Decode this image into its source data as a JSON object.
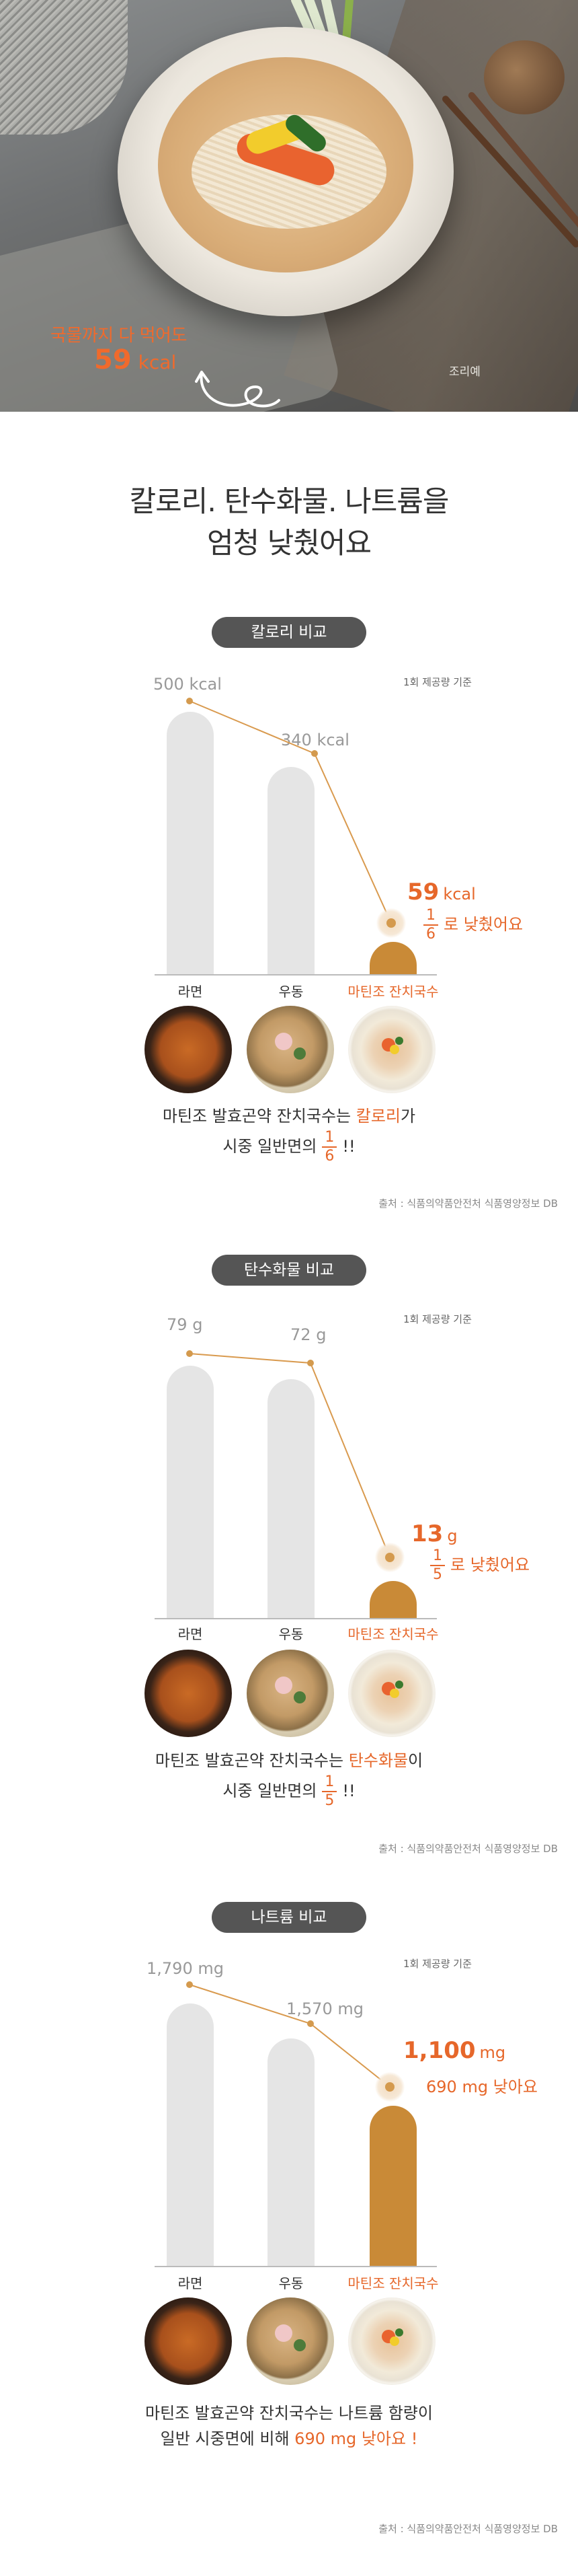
{
  "hero": {
    "caption_line1": "국물까지 다 먹어도",
    "cal_value": "59",
    "cal_unit": "kcal",
    "image_tag": "조리예"
  },
  "heading": {
    "line1": "칼로리. 탄수화물. 나트륨을",
    "line2": "엄청 낮췄어요"
  },
  "products": [
    "라면",
    "우동",
    "마틴조 잔치국수"
  ],
  "sections": [
    {
      "pill": "칼로리 비교",
      "basis": "1회 제공량 기준",
      "values": [
        {
          "num": "500",
          "unit": "kcal"
        },
        {
          "num": "340",
          "unit": "kcal"
        },
        {
          "num": "59",
          "unit": "kcal"
        }
      ],
      "reduction_num": "1",
      "reduction_den": "6",
      "reduction_text": "로 낮췄어요",
      "summary_pre": "마틴조 발효곤약 잔치국수는 ",
      "summary_key": "칼로리",
      "summary_post": "가",
      "summary_line2_pre": "시중 일반면의",
      "summary_line2_num": "1",
      "summary_line2_den": "6",
      "summary_line2_post": "!!",
      "source": "출처 : 식품의약품안전처 식품영양정보 DB"
    },
    {
      "pill": "탄수화물  비교",
      "basis": "1회 제공량 기준",
      "values": [
        {
          "num": "79",
          "unit": "g"
        },
        {
          "num": "72",
          "unit": "g"
        },
        {
          "num": "13",
          "unit": "g"
        }
      ],
      "reduction_num": "1",
      "reduction_den": "5",
      "reduction_text": "로 낮췄어요",
      "summary_pre": "마틴조 발효곤약 잔치국수는 ",
      "summary_key": "탄수화물",
      "summary_post": "이",
      "summary_line2_pre": "시중 일반면의",
      "summary_line2_num": "1",
      "summary_line2_den": "5",
      "summary_line2_post": "!!",
      "source": "출처 : 식품의약품안전처 식품영양정보 DB"
    },
    {
      "pill": "나트륨  비교",
      "basis": "1회 제공량 기준",
      "values": [
        {
          "num": "1,790",
          "unit": "mg"
        },
        {
          "num": "1,570",
          "unit": "mg"
        },
        {
          "num": "1,100",
          "unit": "mg"
        }
      ],
      "reduction_text": "690 mg 낮아요",
      "summary_line1": "마틴조 발효곤약 잔치국수는 나트륨 함량이",
      "summary_line2_pre": "일반 시중면에 비해 ",
      "summary_line2_key": "690 mg 낮아요",
      "summary_line2_post": " !",
      "source": "출처 : 식품의약품안전처 식품영양정보 DB"
    }
  ],
  "chart_data": [
    {
      "type": "bar",
      "categories": [
        "라면",
        "우동",
        "마틴조 잔치국수"
      ],
      "values": [
        500,
        340,
        59
      ],
      "ylabel": "kcal",
      "ylim": [
        0,
        500
      ],
      "grid": false
    },
    {
      "type": "bar",
      "categories": [
        "라면",
        "우동",
        "마틴조 잔치국수"
      ],
      "values": [
        79,
        72,
        13
      ],
      "ylabel": "g",
      "ylim": [
        0,
        79
      ],
      "grid": false
    },
    {
      "type": "bar",
      "categories": [
        "라면",
        "우동",
        "마틴조 잔치국수"
      ],
      "values": [
        1790,
        1570,
        1100
      ],
      "ylabel": "mg",
      "ylim": [
        0,
        1790
      ],
      "grid": false
    }
  ]
}
